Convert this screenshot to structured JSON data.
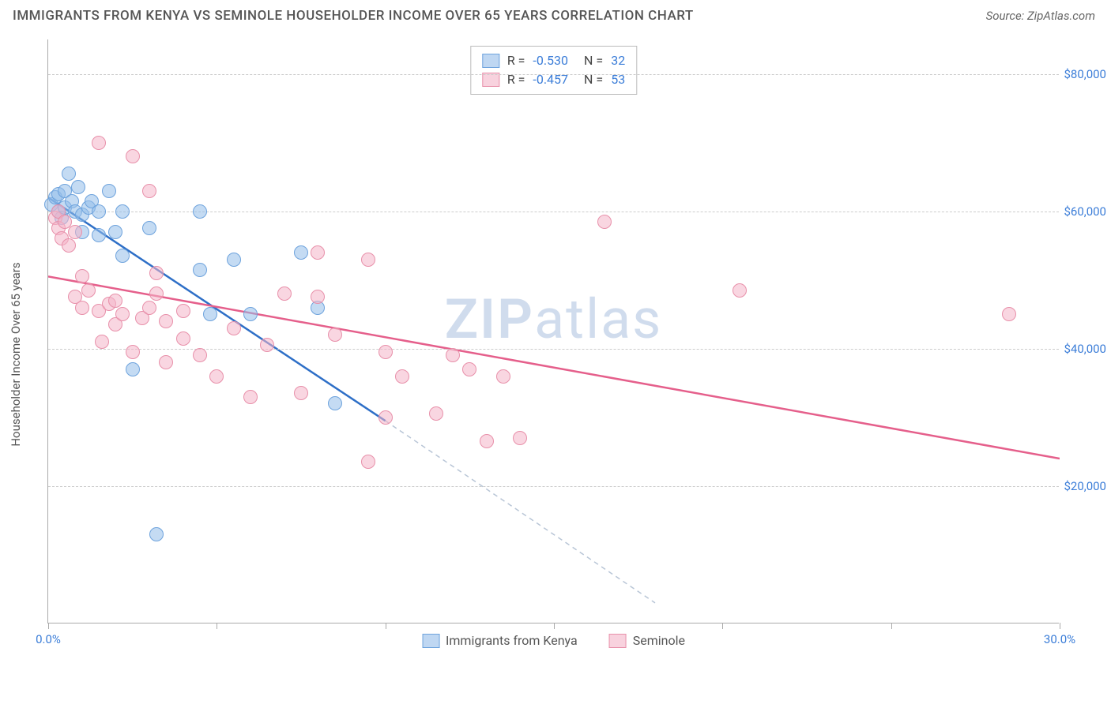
{
  "title": "IMMIGRANTS FROM KENYA VS SEMINOLE HOUSEHOLDER INCOME OVER 65 YEARS CORRELATION CHART",
  "source": "Source: ZipAtlas.com",
  "watermark": "ZIPatlas",
  "chart": {
    "type": "scatter",
    "ylabel": "Householder Income Over 65 years",
    "xlim": [
      0,
      30
    ],
    "ylim": [
      0,
      85000
    ],
    "xtick_positions": [
      0,
      5,
      10,
      15,
      20,
      25,
      30
    ],
    "xtick_labels_shown": {
      "0": "0.0%",
      "30": "30.0%"
    },
    "ytick_positions": [
      20000,
      40000,
      60000,
      80000
    ],
    "ytick_labels": [
      "$20,000",
      "$40,000",
      "$60,000",
      "$80,000"
    ],
    "grid_color": "#cccccc",
    "background_color": "#ffffff",
    "axis_color": "#aaaaaa",
    "tick_label_color": "#3b7dd8",
    "label_fontsize": 15,
    "point_radius": 9,
    "series": [
      {
        "name": "Immigrants from Kenya",
        "color_fill": "rgba(148,189,234,0.55)",
        "color_stroke": "#6ea3dd",
        "R": "-0.530",
        "N": "32",
        "trend": {
          "x1": 0,
          "y1": 62000,
          "x2": 10,
          "y2": 29500,
          "solid_until_x": 10,
          "dash_to_x": 18,
          "dash_to_y": 3000,
          "color": "#2e6fc7",
          "width": 2.5
        },
        "points": [
          [
            0.1,
            61000
          ],
          [
            0.2,
            62000
          ],
          [
            0.3,
            60000
          ],
          [
            0.3,
            62500
          ],
          [
            0.4,
            59000
          ],
          [
            0.5,
            63000
          ],
          [
            0.5,
            60500
          ],
          [
            0.6,
            65500
          ],
          [
            0.7,
            61500
          ],
          [
            0.8,
            60000
          ],
          [
            0.9,
            63500
          ],
          [
            1.0,
            57000
          ],
          [
            1.0,
            59500
          ],
          [
            1.2,
            60500
          ],
          [
            1.3,
            61500
          ],
          [
            1.5,
            56500
          ],
          [
            1.5,
            60000
          ],
          [
            1.8,
            63000
          ],
          [
            2.0,
            57000
          ],
          [
            2.2,
            53500
          ],
          [
            2.2,
            60000
          ],
          [
            2.5,
            37000
          ],
          [
            3.2,
            13000
          ],
          [
            4.5,
            60000
          ],
          [
            4.5,
            51500
          ],
          [
            4.8,
            45000
          ],
          [
            5.5,
            53000
          ],
          [
            6.0,
            45000
          ],
          [
            7.5,
            54000
          ],
          [
            8.0,
            46000
          ],
          [
            8.5,
            32000
          ],
          [
            3.0,
            57500
          ]
        ]
      },
      {
        "name": "Seminole",
        "color_fill": "rgba(244,180,200,0.55)",
        "color_stroke": "#e890aa",
        "R": "-0.457",
        "N": "53",
        "trend": {
          "x1": 0,
          "y1": 50500,
          "x2": 30,
          "y2": 24000,
          "solid_until_x": 30,
          "color": "#e55f8b",
          "width": 2.5
        },
        "points": [
          [
            0.2,
            59000
          ],
          [
            0.3,
            60000
          ],
          [
            0.3,
            57500
          ],
          [
            0.4,
            56000
          ],
          [
            0.5,
            58500
          ],
          [
            0.6,
            55000
          ],
          [
            0.8,
            57000
          ],
          [
            0.8,
            47500
          ],
          [
            1.0,
            46000
          ],
          [
            1.0,
            50500
          ],
          [
            1.2,
            48500
          ],
          [
            1.5,
            45500
          ],
          [
            1.5,
            70000
          ],
          [
            1.6,
            41000
          ],
          [
            1.8,
            46500
          ],
          [
            2.0,
            47000
          ],
          [
            2.0,
            43500
          ],
          [
            2.2,
            45000
          ],
          [
            2.5,
            68000
          ],
          [
            2.5,
            39500
          ],
          [
            2.8,
            44500
          ],
          [
            3.0,
            46000
          ],
          [
            3.0,
            63000
          ],
          [
            3.2,
            48000
          ],
          [
            3.5,
            44000
          ],
          [
            3.5,
            38000
          ],
          [
            4.0,
            45500
          ],
          [
            4.0,
            41500
          ],
          [
            4.5,
            39000
          ],
          [
            5.0,
            36000
          ],
          [
            5.5,
            43000
          ],
          [
            6.0,
            33000
          ],
          [
            6.5,
            40500
          ],
          [
            7.0,
            48000
          ],
          [
            7.5,
            33500
          ],
          [
            8.0,
            54000
          ],
          [
            8.0,
            47500
          ],
          [
            8.5,
            42000
          ],
          [
            9.5,
            53000
          ],
          [
            9.5,
            23500
          ],
          [
            10.0,
            39500
          ],
          [
            10.0,
            30000
          ],
          [
            10.5,
            36000
          ],
          [
            11.5,
            30500
          ],
          [
            12.0,
            39000
          ],
          [
            12.5,
            37000
          ],
          [
            13.0,
            26500
          ],
          [
            13.5,
            36000
          ],
          [
            14.0,
            27000
          ],
          [
            16.5,
            58500
          ],
          [
            20.5,
            48500
          ],
          [
            28.5,
            45000
          ],
          [
            3.2,
            51000
          ]
        ]
      }
    ],
    "legend_bottom": [
      {
        "swatch": "blue",
        "label": "Immigrants from Kenya"
      },
      {
        "swatch": "pink",
        "label": "Seminole"
      }
    ]
  }
}
